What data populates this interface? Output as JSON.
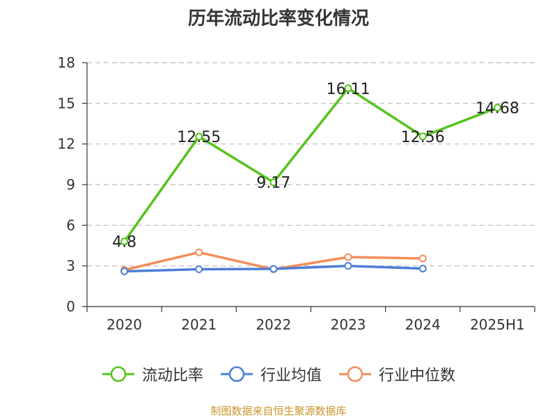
{
  "chart_data": {
    "type": "line",
    "title": "历年流动比率变化情况",
    "xlabel": "",
    "ylabel": "",
    "categories": [
      "2020",
      "2021",
      "2022",
      "2023",
      "2024",
      "2025H1"
    ],
    "ylim": [
      0,
      18
    ],
    "yticks": [
      0,
      3,
      6,
      9,
      12,
      15,
      18
    ],
    "grid": true,
    "legend_position": "bottom",
    "series": [
      {
        "name": "流动比率",
        "color": "#52c41a",
        "values": [
          4.8,
          12.55,
          9.17,
          16.11,
          12.56,
          14.68
        ],
        "show_labels": true,
        "labels": [
          "4.8",
          "12.55",
          "9.17",
          "16.11",
          "12.56",
          "14.68"
        ]
      },
      {
        "name": "行业均值",
        "color": "#4a7fd8",
        "values": [
          2.6,
          2.75,
          2.78,
          3.0,
          2.8,
          null
        ],
        "show_labels": false
      },
      {
        "name": "行业中位数",
        "color": "#f58c5a",
        "values": [
          2.7,
          4.0,
          2.75,
          3.65,
          3.55,
          null
        ],
        "show_labels": false
      }
    ]
  },
  "source_note": "制图数据来自恒生聚源数据库",
  "source_color": "#c8962a"
}
